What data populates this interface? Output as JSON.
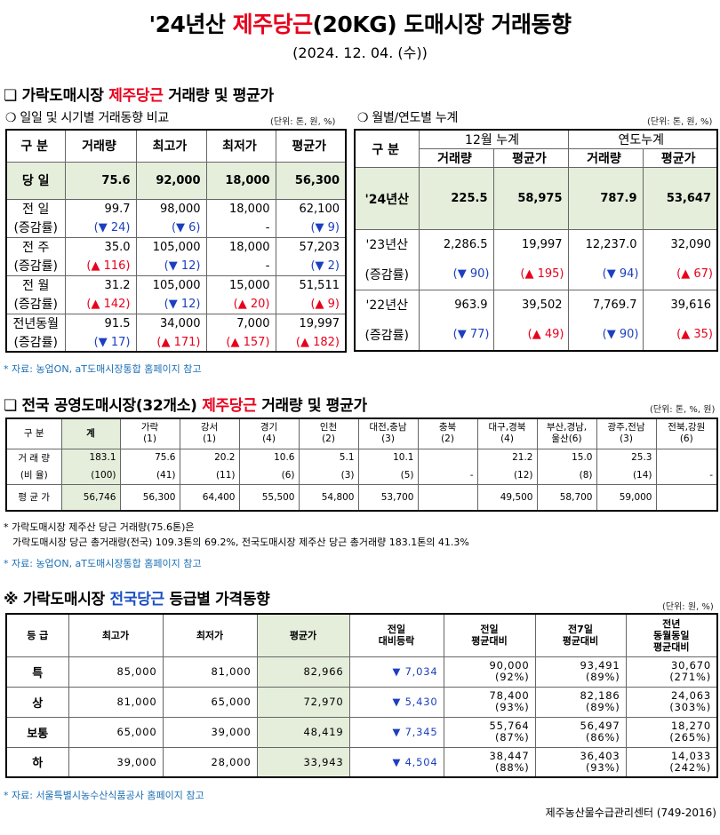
{
  "header": {
    "title_pre": "'24년산 ",
    "title_red": "제주당근",
    "title_post": "(20KG) 도매시장 거래동향",
    "date": "(2024. 12. 04. (수))"
  },
  "section1": {
    "title_pre": "❏ 가락도매시장 ",
    "title_red": "제주당근",
    "title_post": " 거래량 및 평균가",
    "left_title": "❍ 일일 및 시기별 거래동향 비교",
    "left_unit": "(단위: 톤, 원, %)",
    "right_title": "❍ 월별/연도별 누계",
    "right_unit": "(단위: 톤, 원, %)"
  },
  "table1": {
    "headers": [
      "구  분",
      "거래량",
      "최고가",
      "최저가",
      "평균가"
    ],
    "today": {
      "label": "당  일",
      "vals": [
        "75.6",
        "92,000",
        "18,000",
        "56,300"
      ]
    },
    "rows": [
      {
        "label": "전  일",
        "vals": [
          "99.7",
          "98,000",
          "18,000",
          "62,100"
        ],
        "sub": "(증감률)",
        "chg": [
          "(▼ 24)",
          "(▼ 6)",
          "-",
          "(▼ 9)"
        ],
        "dir": [
          "dn",
          "dn",
          "",
          "dn"
        ]
      },
      {
        "label": "전  주",
        "vals": [
          "35.0",
          "105,000",
          "18,000",
          "57,203"
        ],
        "sub": "(증감률)",
        "chg": [
          "(▲ 116)",
          "(▼ 12)",
          "-",
          "(▼ 2)"
        ],
        "dir": [
          "ud",
          "dn",
          "",
          "dn"
        ]
      },
      {
        "label": "전  월",
        "vals": [
          "31.2",
          "105,000",
          "15,000",
          "51,511"
        ],
        "sub": "(증감률)",
        "chg": [
          "(▲ 142)",
          "(▼ 12)",
          "(▲ 20)",
          "(▲ 9)"
        ],
        "dir": [
          "ud",
          "dn",
          "ud",
          "ud"
        ]
      },
      {
        "label": "전년동월",
        "vals": [
          "91.5",
          "34,000",
          "7,000",
          "19,997"
        ],
        "sub": "(증감률)",
        "chg": [
          "(▼ 17)",
          "(▲ 171)",
          "(▲ 157)",
          "(▲ 182)"
        ],
        "dir": [
          "dn",
          "ud",
          "ud",
          "ud"
        ]
      }
    ]
  },
  "table2": {
    "h_label": "구  분",
    "h_month": "12월 누계",
    "h_year": "연도누계",
    "h_sub": [
      "거래량",
      "평균가",
      "거래량",
      "평균가"
    ],
    "y24": {
      "label": "'24년산",
      "vals": [
        "225.5",
        "58,975",
        "787.9",
        "53,647"
      ]
    },
    "y23": {
      "label": "'23년산",
      "vals": [
        "2,286.5",
        "19,997",
        "12,237.0",
        "32,090"
      ],
      "sub": "(증감률)",
      "chg": [
        "(▼ 90)",
        "(▲ 195)",
        "(▼ 94)",
        "(▲ 67)"
      ],
      "dir": [
        "dn",
        "ud",
        "dn",
        "ud"
      ]
    },
    "y22": {
      "label": "'22년산",
      "vals": [
        "963.9",
        "39,502",
        "7,769.7",
        "39,616"
      ],
      "sub": "(증감률)",
      "chg": [
        "(▼ 77)",
        "(▲ 49)",
        "(▼ 90)",
        "(▲ 35)"
      ],
      "dir": [
        "dn",
        "ud",
        "dn",
        "ud"
      ]
    }
  },
  "note1": "* 자료: 농업ON, aT도매시장통합 홈페이지 참고",
  "section2": {
    "title_pre": "❏ 전국 공영도매시장(32개소) ",
    "title_red": "제주당근",
    "title_post": " 거래량 및 평균가",
    "unit": "(단위: 톤, %, 원)"
  },
  "table3": {
    "h_label": "구  분",
    "h_total": "계",
    "markets": [
      {
        "name": "가락",
        "n": "(1)"
      },
      {
        "name": "강서",
        "n": "(1)"
      },
      {
        "name": "경기",
        "n": "(4)"
      },
      {
        "name": "인천",
        "n": "(2)"
      },
      {
        "name": "대전,충남",
        "n": "(3)"
      },
      {
        "name": "충북",
        "n": "(2)"
      },
      {
        "name": "대구,경북",
        "n": "(4)"
      },
      {
        "name": "부산,경남,",
        "n": "울산(6)"
      },
      {
        "name": "광주,전남",
        "n": "(3)"
      },
      {
        "name": "전북,강원",
        "n": "(6)"
      }
    ],
    "vol_label": "거 래 량",
    "ratio_label": "(비 율)",
    "price_label": "평 균 가",
    "vol": [
      "183.1",
      "75.6",
      "20.2",
      "10.6",
      "5.1",
      "10.1",
      "",
      "21.2",
      "15.0",
      "25.3",
      ""
    ],
    "ratio": [
      "(100)",
      "(41)",
      "(11)",
      "(6)",
      "(3)",
      "(5)",
      "-",
      "(12)",
      "(8)",
      "(14)",
      "-"
    ],
    "price": [
      "56,746",
      "56,300",
      "64,400",
      "55,500",
      "54,800",
      "53,700",
      "",
      "49,500",
      "58,700",
      "59,000",
      ""
    ]
  },
  "note2": {
    "line1": "* 가락도매시장 제주산 당근 거래량(75.6톤)은",
    "line2": "가락도매시장 당근 총거래량(전국) 109.3톤의 69.2%, 전국도매시장 제주산 당근 총거래량 183.1톤의 41.3%",
    "line3": "* 자료: 농업ON, aT도매시장통합 홈페이지 참고"
  },
  "section3": {
    "title_pre": "※ 가락도매시장 ",
    "title_blue": "전국당근",
    "title_post": " 등급별 가격동향",
    "unit": "(단위: 원, %)"
  },
  "table4": {
    "headers": [
      [
        "등  급"
      ],
      [
        "최고가"
      ],
      [
        "최저가"
      ],
      [
        "평균가"
      ],
      [
        "전일",
        "대비등락"
      ],
      [
        "전일",
        "평균대비"
      ],
      [
        "전7일",
        "평균대비"
      ],
      [
        "전년",
        "동월동일",
        "평균대비"
      ]
    ],
    "rows": [
      {
        "grade": "특",
        "max": "85,000",
        "min": "81,000",
        "avg": "82,966",
        "diff": "▼ 7,034",
        "prev": "90,000",
        "prev_p": "(92%)",
        "w7": "93,491",
        "w7_p": "(89%)",
        "ly": "30,670",
        "ly_p": "(271%)"
      },
      {
        "grade": "상",
        "max": "81,000",
        "min": "65,000",
        "avg": "72,970",
        "diff": "▼ 5,430",
        "prev": "78,400",
        "prev_p": "(93%)",
        "w7": "82,186",
        "w7_p": "(89%)",
        "ly": "24,063",
        "ly_p": "(303%)"
      },
      {
        "grade": "보통",
        "max": "65,000",
        "min": "39,000",
        "avg": "48,419",
        "diff": "▼ 7,345",
        "prev": "55,764",
        "prev_p": "(87%)",
        "w7": "56,497",
        "w7_p": "(86%)",
        "ly": "18,270",
        "ly_p": "(265%)"
      },
      {
        "grade": "하",
        "max": "39,000",
        "min": "28,000",
        "avg": "33,943",
        "diff": "▼ 4,504",
        "prev": "38,447",
        "prev_p": "(88%)",
        "w7": "36,403",
        "w7_p": "(93%)",
        "ly": "14,033",
        "ly_p": "(242%)"
      }
    ]
  },
  "note3": "* 자료: 서울특별시농수산식품공사 홈페이지 참고",
  "footer": "제주농산물수급관리센터 (749-2016)"
}
